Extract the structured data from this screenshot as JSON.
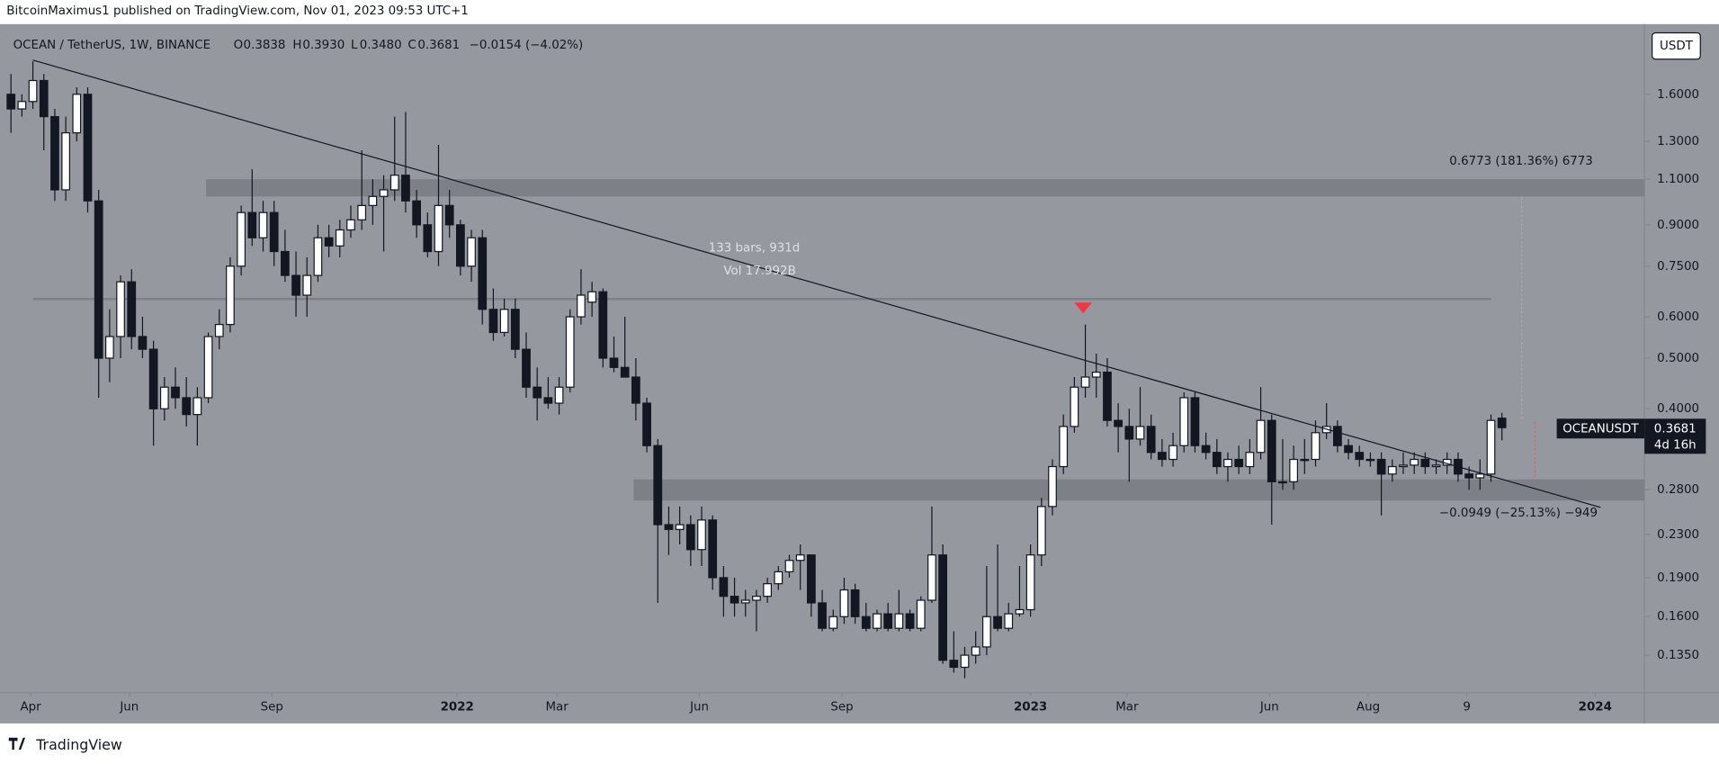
{
  "header": "BitcoinMaximus1 published on TradingView.com, Nov 01, 2023 09:53 UTC+1",
  "footer": "TradingView",
  "chart_data": {
    "type": "candlestick",
    "title": "OCEAN / TetherUS, 1W, BINANCE",
    "legend": {
      "o": "O",
      "o_value": "0.3838",
      "h": "H",
      "h_value": "0.3930",
      "l": "L",
      "l_value": "0.3480",
      "c": "C",
      "c_value": "0.3681",
      "change": "−0.0154 (−4.02%)"
    },
    "currency": "USDT",
    "last_price": {
      "symbol": "OCEANUSDT",
      "value": "0.3681",
      "countdown": "4d 16h"
    },
    "colors": {
      "up": "#ffffff",
      "down": "#131722",
      "outline": "#131722",
      "background": "#95989f",
      "zone": "#7d8087"
    },
    "log_scale": true,
    "ylim": [
      0.1144,
      2.18
    ],
    "yticks": [
      {
        "value": 1.6,
        "label": "1.6000"
      },
      {
        "value": 1.3,
        "label": "1.3000"
      },
      {
        "value": 1.1,
        "label": "1.1000"
      },
      {
        "value": 0.9,
        "label": "0.9000"
      },
      {
        "value": 0.75,
        "label": "0.7500"
      },
      {
        "value": 0.6,
        "label": "0.6000"
      },
      {
        "value": 0.5,
        "label": "0.5000"
      },
      {
        "value": 0.4,
        "label": "0.4000"
      },
      {
        "value": 0.28,
        "label": "0.2800"
      },
      {
        "value": 0.23,
        "label": "0.2300"
      },
      {
        "value": 0.19,
        "label": "0.1900"
      },
      {
        "value": 0.16,
        "label": "0.1600"
      },
      {
        "value": 0.135,
        "label": "0.1350"
      }
    ],
    "xlim": [
      -1,
      149
    ],
    "xticks": [
      {
        "value": 1.8,
        "label": "Apr"
      },
      {
        "value": 10.8,
        "label": "Jun"
      },
      {
        "value": 23.8,
        "label": "Sep"
      },
      {
        "value": 40.7,
        "label": "2022"
      },
      {
        "value": 49.8,
        "label": "Mar"
      },
      {
        "value": 62.8,
        "label": "Jun"
      },
      {
        "value": 75.8,
        "label": "Sep"
      },
      {
        "value": 93,
        "label": "2023"
      },
      {
        "value": 101.8,
        "label": "Mar"
      },
      {
        "value": 114.8,
        "label": "Jun"
      },
      {
        "value": 123.8,
        "label": "Aug"
      },
      {
        "value": 132.8,
        "label": "9"
      },
      {
        "value": 144.5,
        "label": "2024"
      }
    ],
    "ohlc": [
      [
        1.6,
        1.75,
        1.35,
        1.5
      ],
      [
        1.5,
        1.6,
        1.45,
        1.55
      ],
      [
        1.55,
        1.85,
        1.5,
        1.7
      ],
      [
        1.7,
        1.75,
        1.25,
        1.45
      ],
      [
        1.45,
        1.5,
        1.0,
        1.05
      ],
      [
        1.05,
        1.45,
        1.0,
        1.35
      ],
      [
        1.35,
        1.65,
        1.3,
        1.6
      ],
      [
        1.6,
        1.65,
        0.95,
        1.0
      ],
      [
        1.0,
        1.05,
        0.42,
        0.5
      ],
      [
        0.5,
        0.62,
        0.45,
        0.55
      ],
      [
        0.55,
        0.72,
        0.5,
        0.7
      ],
      [
        0.7,
        0.74,
        0.52,
        0.55
      ],
      [
        0.55,
        0.6,
        0.5,
        0.52
      ],
      [
        0.52,
        0.54,
        0.34,
        0.4
      ],
      [
        0.4,
        0.46,
        0.38,
        0.44
      ],
      [
        0.44,
        0.48,
        0.4,
        0.42
      ],
      [
        0.42,
        0.46,
        0.37,
        0.39
      ],
      [
        0.39,
        0.44,
        0.34,
        0.42
      ],
      [
        0.42,
        0.56,
        0.41,
        0.55
      ],
      [
        0.55,
        0.62,
        0.52,
        0.58
      ],
      [
        0.58,
        0.78,
        0.56,
        0.75
      ],
      [
        0.75,
        0.98,
        0.72,
        0.95
      ],
      [
        0.95,
        1.15,
        0.82,
        0.85
      ],
      [
        0.85,
        1.0,
        0.8,
        0.95
      ],
      [
        0.95,
        1.0,
        0.75,
        0.8
      ],
      [
        0.8,
        0.88,
        0.7,
        0.72
      ],
      [
        0.72,
        0.8,
        0.6,
        0.66
      ],
      [
        0.66,
        0.78,
        0.6,
        0.72
      ],
      [
        0.72,
        0.9,
        0.7,
        0.85
      ],
      [
        0.85,
        0.9,
        0.78,
        0.82
      ],
      [
        0.82,
        0.92,
        0.78,
        0.88
      ],
      [
        0.88,
        0.98,
        0.85,
        0.92
      ],
      [
        0.92,
        1.25,
        0.88,
        0.98
      ],
      [
        0.98,
        1.1,
        0.9,
        1.02
      ],
      [
        1.02,
        1.12,
        0.8,
        1.05
      ],
      [
        1.05,
        1.45,
        1.0,
        1.12
      ],
      [
        1.12,
        1.48,
        0.95,
        1.0
      ],
      [
        1.0,
        1.05,
        0.85,
        0.9
      ],
      [
        0.9,
        0.95,
        0.78,
        0.8
      ],
      [
        0.8,
        1.28,
        0.75,
        0.98
      ],
      [
        0.98,
        1.05,
        0.85,
        0.9
      ],
      [
        0.9,
        0.92,
        0.72,
        0.75
      ],
      [
        0.75,
        0.88,
        0.7,
        0.85
      ],
      [
        0.85,
        0.88,
        0.58,
        0.62
      ],
      [
        0.62,
        0.68,
        0.54,
        0.56
      ],
      [
        0.56,
        0.65,
        0.55,
        0.62
      ],
      [
        0.62,
        0.65,
        0.5,
        0.52
      ],
      [
        0.52,
        0.56,
        0.42,
        0.44
      ],
      [
        0.44,
        0.48,
        0.38,
        0.42
      ],
      [
        0.42,
        0.46,
        0.4,
        0.41
      ],
      [
        0.41,
        0.46,
        0.39,
        0.44
      ],
      [
        0.44,
        0.62,
        0.43,
        0.6
      ],
      [
        0.6,
        0.74,
        0.58,
        0.66
      ],
      [
        0.64,
        0.7,
        0.6,
        0.67
      ],
      [
        0.67,
        0.68,
        0.48,
        0.5
      ],
      [
        0.5,
        0.55,
        0.47,
        0.48
      ],
      [
        0.48,
        0.6,
        0.46,
        0.46
      ],
      [
        0.46,
        0.5,
        0.38,
        0.41
      ],
      [
        0.41,
        0.42,
        0.33,
        0.34
      ],
      [
        0.34,
        0.35,
        0.17,
        0.24
      ],
      [
        0.24,
        0.26,
        0.21,
        0.235
      ],
      [
        0.235,
        0.26,
        0.22,
        0.24
      ],
      [
        0.24,
        0.25,
        0.2,
        0.215
      ],
      [
        0.215,
        0.26,
        0.2,
        0.245
      ],
      [
        0.245,
        0.25,
        0.18,
        0.19
      ],
      [
        0.19,
        0.2,
        0.16,
        0.175
      ],
      [
        0.175,
        0.19,
        0.16,
        0.17
      ],
      [
        0.17,
        0.18,
        0.16,
        0.172
      ],
      [
        0.172,
        0.18,
        0.15,
        0.175
      ],
      [
        0.175,
        0.19,
        0.17,
        0.185
      ],
      [
        0.185,
        0.2,
        0.18,
        0.195
      ],
      [
        0.195,
        0.21,
        0.19,
        0.205
      ],
      [
        0.205,
        0.22,
        0.18,
        0.21
      ],
      [
        0.21,
        0.21,
        0.16,
        0.17
      ],
      [
        0.17,
        0.18,
        0.15,
        0.152
      ],
      [
        0.152,
        0.165,
        0.15,
        0.16
      ],
      [
        0.16,
        0.19,
        0.155,
        0.18
      ],
      [
        0.18,
        0.185,
        0.155,
        0.16
      ],
      [
        0.16,
        0.17,
        0.15,
        0.152
      ],
      [
        0.152,
        0.165,
        0.15,
        0.162
      ],
      [
        0.162,
        0.17,
        0.15,
        0.152
      ],
      [
        0.152,
        0.18,
        0.15,
        0.162
      ],
      [
        0.162,
        0.165,
        0.15,
        0.152
      ],
      [
        0.152,
        0.175,
        0.15,
        0.172
      ],
      [
        0.172,
        0.26,
        0.17,
        0.21
      ],
      [
        0.21,
        0.22,
        0.13,
        0.132
      ],
      [
        0.132,
        0.15,
        0.125,
        0.128
      ],
      [
        0.128,
        0.14,
        0.122,
        0.135
      ],
      [
        0.135,
        0.15,
        0.13,
        0.14
      ],
      [
        0.14,
        0.2,
        0.135,
        0.16
      ],
      [
        0.16,
        0.22,
        0.15,
        0.152
      ],
      [
        0.152,
        0.17,
        0.15,
        0.162
      ],
      [
        0.162,
        0.2,
        0.16,
        0.165
      ],
      [
        0.165,
        0.22,
        0.16,
        0.21
      ],
      [
        0.21,
        0.27,
        0.2,
        0.26
      ],
      [
        0.26,
        0.32,
        0.25,
        0.31
      ],
      [
        0.31,
        0.39,
        0.3,
        0.37
      ],
      [
        0.37,
        0.46,
        0.36,
        0.44
      ],
      [
        0.44,
        0.58,
        0.42,
        0.46
      ],
      [
        0.46,
        0.51,
        0.42,
        0.47
      ],
      [
        0.47,
        0.5,
        0.37,
        0.38
      ],
      [
        0.38,
        0.41,
        0.33,
        0.37
      ],
      [
        0.37,
        0.4,
        0.29,
        0.35
      ],
      [
        0.35,
        0.44,
        0.34,
        0.37
      ],
      [
        0.37,
        0.39,
        0.32,
        0.33
      ],
      [
        0.33,
        0.35,
        0.31,
        0.32
      ],
      [
        0.32,
        0.36,
        0.31,
        0.34
      ],
      [
        0.34,
        0.43,
        0.33,
        0.42
      ],
      [
        0.42,
        0.43,
        0.33,
        0.34
      ],
      [
        0.34,
        0.36,
        0.32,
        0.33
      ],
      [
        0.33,
        0.35,
        0.3,
        0.31
      ],
      [
        0.31,
        0.33,
        0.29,
        0.32
      ],
      [
        0.32,
        0.34,
        0.3,
        0.31
      ],
      [
        0.31,
        0.35,
        0.3,
        0.33
      ],
      [
        0.33,
        0.44,
        0.32,
        0.38
      ],
      [
        0.38,
        0.39,
        0.24,
        0.29
      ],
      [
        0.29,
        0.35,
        0.28,
        0.29
      ],
      [
        0.29,
        0.34,
        0.28,
        0.32
      ],
      [
        0.32,
        0.35,
        0.3,
        0.32
      ],
      [
        0.32,
        0.38,
        0.31,
        0.36
      ],
      [
        0.36,
        0.41,
        0.35,
        0.37
      ],
      [
        0.37,
        0.38,
        0.33,
        0.34
      ],
      [
        0.34,
        0.35,
        0.32,
        0.33
      ],
      [
        0.33,
        0.34,
        0.31,
        0.32
      ],
      [
        0.32,
        0.33,
        0.31,
        0.32
      ],
      [
        0.32,
        0.33,
        0.25,
        0.3
      ],
      [
        0.3,
        0.32,
        0.29,
        0.31
      ],
      [
        0.31,
        0.33,
        0.3,
        0.312
      ],
      [
        0.312,
        0.33,
        0.3,
        0.32
      ],
      [
        0.32,
        0.33,
        0.3,
        0.31
      ],
      [
        0.31,
        0.32,
        0.3,
        0.312
      ],
      [
        0.312,
        0.33,
        0.3,
        0.32
      ],
      [
        0.32,
        0.33,
        0.29,
        0.3
      ],
      [
        0.3,
        0.31,
        0.28,
        0.295
      ],
      [
        0.295,
        0.32,
        0.28,
        0.3
      ],
      [
        0.3,
        0.39,
        0.29,
        0.38
      ],
      [
        0.3838,
        0.393,
        0.348,
        0.3681
      ]
    ],
    "trendline": {
      "x": [
        2,
        145
      ],
      "y": [
        1.86,
        0.259
      ]
    },
    "zones": [
      {
        "x": [
          17.8,
          149
        ],
        "y": [
          1.02,
          1.1
        ]
      },
      {
        "x": [
          56.8,
          149
        ],
        "y": [
          0.267,
          0.293
        ]
      }
    ],
    "level_line": {
      "x": [
        2,
        135
      ],
      "y": 0.649
    },
    "annotations": {
      "bars": "133 bars, 931d",
      "volume": "Vol 17.992B",
      "target": "0.6773 (181.36%) 6773",
      "drawdown": "−0.0949 (−25.13%) −949"
    }
  }
}
